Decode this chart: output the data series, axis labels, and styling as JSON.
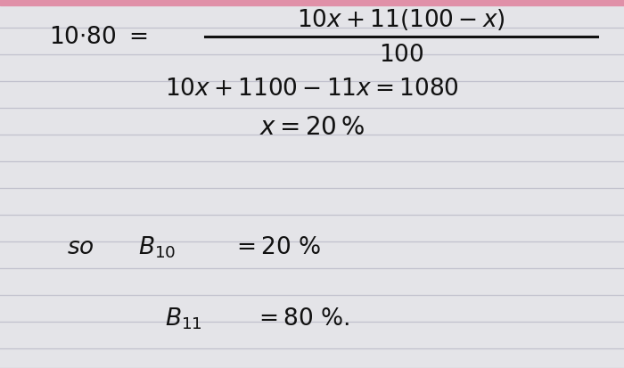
{
  "bg_color": "#d8d8dc",
  "line_color": "#b8bcc8",
  "paper_color_top": "#e8e4ee",
  "paper_color_main": "#e8e8ec",
  "text_color": "#111111",
  "pink_bar_color": "#d8a0b8",
  "fig_width": 7.0,
  "fig_height": 4.14,
  "dpi": 100,
  "line_y_positions": [
    32,
    62,
    92,
    122,
    152,
    182,
    212,
    242,
    272,
    302,
    332,
    362,
    392,
    414
  ],
  "ruled_line_color": "#aaaabc",
  "ruled_line_alpha": 0.6
}
